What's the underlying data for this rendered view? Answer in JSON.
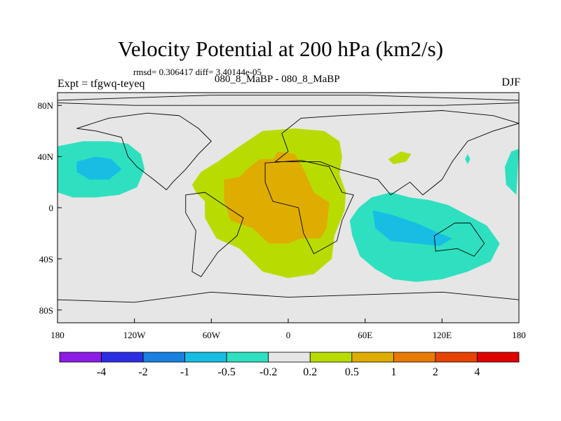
{
  "header": {
    "title": "Velocity Potential at 200 hPa (km2/s)",
    "stats": "rmsd= 0.306417 diff= 3.40144e-05",
    "expt": "Expt = tfgwq-teyeq",
    "difference": "080_8_MaBP - 080_8_MaBP",
    "season": "DJF"
  },
  "chart_data": {
    "type": "heatmap",
    "title": "Velocity Potential at 200 hPa (km2/s)",
    "xlabel": "",
    "ylabel": "",
    "xlim": [
      -180,
      180
    ],
    "ylim": [
      -90,
      90
    ],
    "x_ticks": [
      {
        "value": -180,
        "label": "180"
      },
      {
        "value": -120,
        "label": "120W"
      },
      {
        "value": -60,
        "label": "60W"
      },
      {
        "value": 0,
        "label": "0"
      },
      {
        "value": 60,
        "label": "60E"
      },
      {
        "value": 120,
        "label": "120E"
      },
      {
        "value": 180,
        "label": "180"
      }
    ],
    "y_ticks": [
      {
        "value": 80,
        "label": "80N"
      },
      {
        "value": 40,
        "label": "40N"
      },
      {
        "value": 0,
        "label": "0"
      },
      {
        "value": -40,
        "label": "40S"
      },
      {
        "value": -80,
        "label": "80S"
      }
    ],
    "colorbar": {
      "levels": [
        "-4",
        "-2",
        "-1",
        "-0.5",
        "-0.2",
        "0.2",
        "0.5",
        "1",
        "2",
        "4"
      ],
      "colors": [
        "#8c1ce6",
        "#2b2ee3",
        "#1780e0",
        "#17bde3",
        "#2ee0c0",
        "#e6e6e6",
        "#b9dc00",
        "#dfac00",
        "#e97a00",
        "#e64400",
        "#e00000"
      ]
    },
    "field_regions": [
      {
        "name": "N. Pacific negative",
        "level": "-0.2 to -0.5",
        "color": "#2ee0c0",
        "polygon": [
          [
            -180,
            48
          ],
          [
            -160,
            52
          ],
          [
            -140,
            52
          ],
          [
            -125,
            50
          ],
          [
            -115,
            42
          ],
          [
            -112,
            30
          ],
          [
            -118,
            16
          ],
          [
            -132,
            10
          ],
          [
            -150,
            8
          ],
          [
            -168,
            8
          ],
          [
            -180,
            12
          ]
        ]
      },
      {
        "name": "N. Pacific core",
        "level": "-0.5 to -1",
        "color": "#17bde3",
        "polygon": [
          [
            -165,
            36
          ],
          [
            -150,
            40
          ],
          [
            -138,
            38
          ],
          [
            -130,
            30
          ],
          [
            -140,
            22
          ],
          [
            -155,
            22
          ],
          [
            -165,
            28
          ]
        ]
      },
      {
        "name": "Africa/Atlantic positive",
        "level": "0.2 to 0.5",
        "color": "#b9dc00",
        "polygon": [
          [
            -75,
            18
          ],
          [
            -68,
            28
          ],
          [
            -55,
            36
          ],
          [
            -38,
            48
          ],
          [
            -20,
            60
          ],
          [
            5,
            62
          ],
          [
            28,
            60
          ],
          [
            40,
            52
          ],
          [
            42,
            40
          ],
          [
            40,
            26
          ],
          [
            45,
            12
          ],
          [
            44,
            -2
          ],
          [
            36,
            -22
          ],
          [
            34,
            -40
          ],
          [
            20,
            -52
          ],
          [
            0,
            -55
          ],
          [
            -20,
            -50
          ],
          [
            -38,
            -32
          ],
          [
            -56,
            -24
          ],
          [
            -65,
            -8
          ],
          [
            -65,
            5
          ],
          [
            -72,
            12
          ]
        ]
      },
      {
        "name": "Africa/Atlantic core",
        "level": "0.5 to 1",
        "color": "#dfac00",
        "polygon": [
          [
            -50,
            22
          ],
          [
            -38,
            24
          ],
          [
            -30,
            32
          ],
          [
            -22,
            38
          ],
          [
            -12,
            38
          ],
          [
            -8,
            44
          ],
          [
            5,
            42
          ],
          [
            12,
            30
          ],
          [
            20,
            12
          ],
          [
            32,
            4
          ],
          [
            30,
            -16
          ],
          [
            25,
            -24
          ],
          [
            10,
            -24
          ],
          [
            0,
            -28
          ],
          [
            -15,
            -28
          ],
          [
            -28,
            -16
          ],
          [
            -45,
            -10
          ],
          [
            -50,
            5
          ]
        ]
      },
      {
        "name": "Indian Ocean negative",
        "level": "-0.2 to -0.5",
        "color": "#2ee0c0",
        "polygon": [
          [
            55,
            0
          ],
          [
            65,
            8
          ],
          [
            80,
            12
          ],
          [
            95,
            8
          ],
          [
            110,
            6
          ],
          [
            125,
            2
          ],
          [
            140,
            -6
          ],
          [
            155,
            -14
          ],
          [
            165,
            -28
          ],
          [
            158,
            -42
          ],
          [
            140,
            -50
          ],
          [
            120,
            -56
          ],
          [
            100,
            -58
          ],
          [
            82,
            -56
          ],
          [
            68,
            -48
          ],
          [
            56,
            -38
          ],
          [
            50,
            -22
          ],
          [
            48,
            -10
          ]
        ]
      },
      {
        "name": "Indian Ocean core",
        "level": "-0.5 to -1",
        "color": "#17bde3",
        "polygon": [
          [
            66,
            -2
          ],
          [
            82,
            -6
          ],
          [
            100,
            -12
          ],
          [
            118,
            -20
          ],
          [
            128,
            -24
          ],
          [
            118,
            -30
          ],
          [
            100,
            -28
          ],
          [
            80,
            -26
          ],
          [
            68,
            -16
          ]
        ]
      },
      {
        "name": "Mediterranean positive",
        "level": "0.2 to 0.5",
        "color": "#b9dc00",
        "polygon": [
          [
            78,
            38
          ],
          [
            88,
            44
          ],
          [
            96,
            42
          ],
          [
            92,
            36
          ],
          [
            82,
            34
          ]
        ]
      },
      {
        "name": "East Asia negative",
        "level": "-0.2 to -0.5",
        "color": "#2ee0c0",
        "polygon": [
          [
            138,
            38
          ],
          [
            140,
            42
          ],
          [
            142,
            38
          ],
          [
            140,
            34
          ]
        ]
      },
      {
        "name": "Dateline negative",
        "level": "-0.2 to -0.5",
        "color": "#2ee0c0",
        "polygon": [
          [
            178,
            10
          ],
          [
            170,
            18
          ],
          [
            169,
            32
          ],
          [
            174,
            44
          ],
          [
            180,
            46
          ]
        ]
      }
    ],
    "land_outlines": [
      {
        "name": "Greenland and Arctic",
        "polygon": [
          [
            -180,
            84
          ],
          [
            -120,
            86
          ],
          [
            -60,
            88
          ],
          [
            0,
            88
          ],
          [
            60,
            88
          ],
          [
            120,
            86
          ],
          [
            180,
            84
          ],
          [
            180,
            82
          ],
          [
            120,
            80
          ],
          [
            60,
            80
          ],
          [
            0,
            80
          ],
          [
            -60,
            80
          ],
          [
            -120,
            80
          ],
          [
            -180,
            82
          ]
        ]
      },
      {
        "name": "North America",
        "polygon": [
          [
            -165,
            62
          ],
          [
            -140,
            70
          ],
          [
            -110,
            74
          ],
          [
            -85,
            72
          ],
          [
            -70,
            62
          ],
          [
            -60,
            52
          ],
          [
            -70,
            42
          ],
          [
            -80,
            30
          ],
          [
            -90,
            20
          ],
          [
            -95,
            14
          ],
          [
            -105,
            22
          ],
          [
            -118,
            32
          ],
          [
            -125,
            40
          ],
          [
            -130,
            55
          ],
          [
            -150,
            60
          ]
        ]
      },
      {
        "name": "South America",
        "polygon": [
          [
            -80,
            10
          ],
          [
            -65,
            12
          ],
          [
            -50,
            2
          ],
          [
            -35,
            -8
          ],
          [
            -40,
            -22
          ],
          [
            -55,
            -35
          ],
          [
            -68,
            -54
          ],
          [
            -75,
            -50
          ],
          [
            -72,
            -18
          ],
          [
            -80,
            -4
          ]
        ]
      },
      {
        "name": "Africa",
        "polygon": [
          [
            -18,
            35
          ],
          [
            10,
            37
          ],
          [
            32,
            32
          ],
          [
            42,
            12
          ],
          [
            51,
            10
          ],
          [
            42,
            -10
          ],
          [
            38,
            -26
          ],
          [
            20,
            -36
          ],
          [
            12,
            -20
          ],
          [
            8,
            0
          ],
          [
            -12,
            5
          ],
          [
            -18,
            20
          ]
        ]
      },
      {
        "name": "Eurasia",
        "polygon": [
          [
            -10,
            36
          ],
          [
            0,
            44
          ],
          [
            -5,
            58
          ],
          [
            10,
            70
          ],
          [
            40,
            72
          ],
          [
            80,
            74
          ],
          [
            120,
            76
          ],
          [
            160,
            72
          ],
          [
            180,
            66
          ],
          [
            160,
            60
          ],
          [
            140,
            52
          ],
          [
            128,
            36
          ],
          [
            120,
            22
          ],
          [
            105,
            10
          ],
          [
            95,
            20
          ],
          [
            80,
            10
          ],
          [
            70,
            22
          ],
          [
            55,
            26
          ],
          [
            40,
            30
          ],
          [
            25,
            36
          ]
        ]
      },
      {
        "name": "Australia",
        "polygon": [
          [
            114,
            -22
          ],
          [
            130,
            -12
          ],
          [
            142,
            -12
          ],
          [
            153,
            -28
          ],
          [
            145,
            -38
          ],
          [
            132,
            -32
          ],
          [
            115,
            -34
          ]
        ]
      },
      {
        "name": "Antarctica",
        "polygon": [
          [
            -180,
            -72
          ],
          [
            -120,
            -74
          ],
          [
            -60,
            -66
          ],
          [
            0,
            -70
          ],
          [
            60,
            -68
          ],
          [
            120,
            -66
          ],
          [
            180,
            -72
          ],
          [
            180,
            -90
          ],
          [
            -180,
            -90
          ]
        ]
      }
    ]
  }
}
